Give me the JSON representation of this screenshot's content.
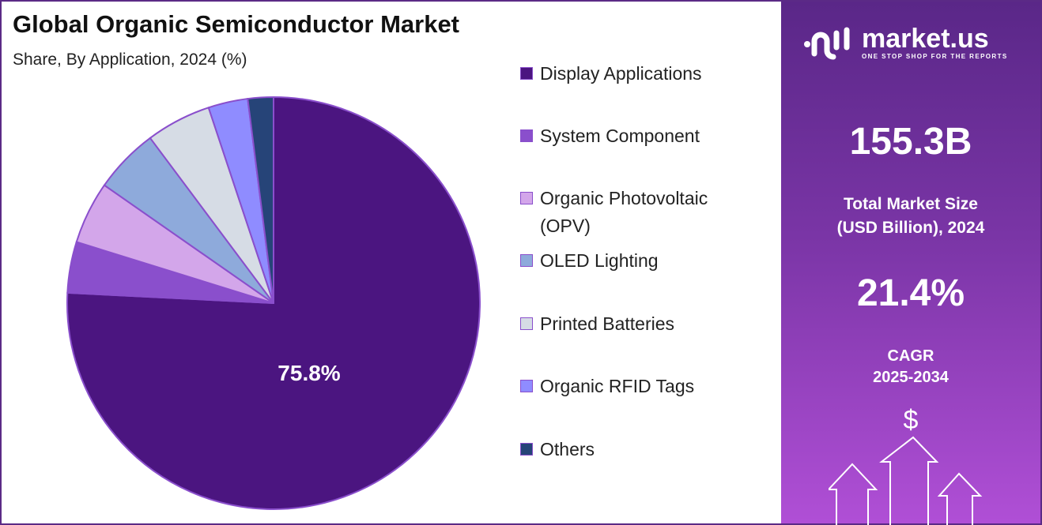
{
  "chart_data": {
    "type": "pie",
    "title": "Global Organic Semiconductor Market",
    "subtitle": "Share, By Application, 2024 (%)",
    "categories": [
      "Display Applications",
      "System Component",
      "Organic Photovoltaic (OPV)",
      "OLED Lighting",
      "Printed Batteries",
      "Organic RFID Tags",
      "Others"
    ],
    "values": [
      75.8,
      4.0,
      4.9,
      5.1,
      5.1,
      3.1,
      2.0
    ],
    "colors": [
      "#4b1580",
      "#8a4fcc",
      "#d3a6ea",
      "#8eaadb",
      "#d6dce5",
      "#8f8cff",
      "#264478"
    ],
    "data_labels": [
      "75.8%"
    ],
    "legend_position": "right",
    "start": "top, clockwise"
  },
  "legend": {
    "items": [
      "Display Applications",
      "System Component",
      "Organic Photovoltaic\n(OPV)",
      "OLED Lighting",
      "Printed Batteries",
      "Organic RFID Tags",
      "Others"
    ]
  },
  "panel": {
    "logo_text": "market.us",
    "logo_tagline": "ONE STOP SHOP FOR THE REPORTS",
    "market_size": "155.3B",
    "market_size_label_1": "Total Market Size",
    "market_size_label_2": "(USD Billion), 2024",
    "cagr": "21.4%",
    "cagr_label_1": "CAGR",
    "cagr_label_2": "2025-2034",
    "dollar_icon": "$"
  }
}
